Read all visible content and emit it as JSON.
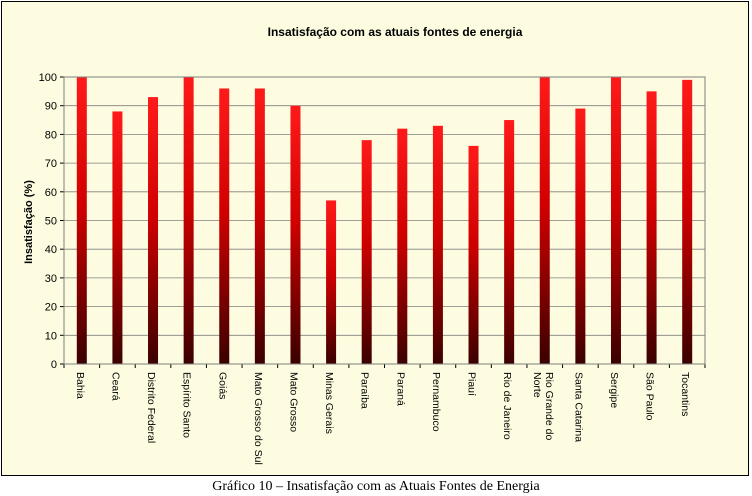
{
  "caption": "Gráfico 10 – Insatisfação com as Atuais Fontes de Energia",
  "colors": {
    "background": "#fdfce0",
    "plot_background": "#fdfce0",
    "bar_top": "#ff1a1a",
    "bar_bottom": "#3a0000",
    "gridline": "#808080"
  },
  "chart_data": {
    "type": "bar",
    "title": "Insatisfação com as atuais fontes de energia",
    "xlabel": "",
    "ylabel": "Insatisfação (%)",
    "ylim": [
      0,
      100
    ],
    "yticks": [
      0,
      10,
      20,
      30,
      40,
      50,
      60,
      70,
      80,
      90,
      100
    ],
    "grid": true,
    "categories": [
      "Bahia",
      "Ceará",
      "Distrito Federal",
      "Espírito Santo",
      "Goiás",
      "Mato Grosso do Sul",
      "Mato Grosso",
      "Minas Gerais",
      "Paraíba",
      "Paraná",
      "Pernambuco",
      "Piauí",
      "Rio de Janeiro",
      "Rio Grande do Norte",
      "Santa Catarina",
      "Sergipe",
      "São Paulo",
      "Tocantins"
    ],
    "values": [
      100,
      88,
      93,
      100,
      96,
      96,
      90,
      57,
      78,
      82,
      83,
      76,
      85,
      100,
      89,
      100,
      95,
      99
    ]
  }
}
